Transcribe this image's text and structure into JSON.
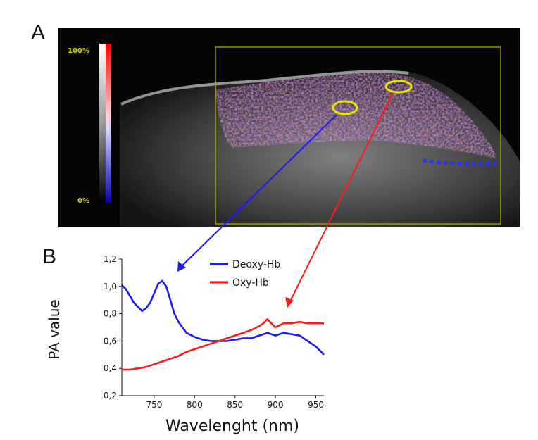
{
  "panels": {
    "a_label": "A",
    "b_label": "B"
  },
  "image_panel": {
    "colorbar_top_label": "100%",
    "colorbar_bottom_label": "0%",
    "colors": {
      "roi_outline": "#e6e600",
      "oxy_arrow": "#ff1a1a",
      "deoxy_arrow": "#1a1aff"
    }
  },
  "chart_data": {
    "type": "line",
    "title": "",
    "xlabel": "Wavelenght (nm)",
    "ylabel": "PA value",
    "xlim": [
      710,
      960
    ],
    "ylim": [
      0.2,
      1.2
    ],
    "xticks": [
      750,
      800,
      850,
      900,
      950
    ],
    "yticks": [
      0.2,
      0.4,
      0.6,
      0.8,
      1.0,
      1.2
    ],
    "ytick_labels": [
      "0,2",
      "0,4",
      "0,6",
      "0,8",
      "1,0",
      "1,2"
    ],
    "legend_position": "top-right",
    "series": [
      {
        "name": "Deoxy-Hb",
        "color": "#1a1aff",
        "x": [
          710,
          715,
          720,
          725,
          730,
          735,
          740,
          745,
          750,
          755,
          760,
          765,
          770,
          775,
          780,
          785,
          790,
          800,
          810,
          820,
          830,
          840,
          850,
          860,
          870,
          880,
          890,
          900,
          910,
          920,
          930,
          940,
          950,
          960
        ],
        "y": [
          1.01,
          0.98,
          0.93,
          0.88,
          0.85,
          0.82,
          0.84,
          0.88,
          0.95,
          1.02,
          1.04,
          1.0,
          0.9,
          0.8,
          0.74,
          0.7,
          0.66,
          0.63,
          0.61,
          0.6,
          0.6,
          0.6,
          0.61,
          0.62,
          0.62,
          0.64,
          0.66,
          0.64,
          0.66,
          0.65,
          0.64,
          0.6,
          0.56,
          0.5
        ]
      },
      {
        "name": "Oxy-Hb",
        "color": "#ff1a1a",
        "x": [
          710,
          720,
          730,
          740,
          750,
          760,
          770,
          780,
          790,
          800,
          810,
          820,
          830,
          840,
          850,
          860,
          870,
          880,
          885,
          890,
          895,
          900,
          910,
          920,
          930,
          940,
          950,
          960
        ],
        "y": [
          0.39,
          0.39,
          0.4,
          0.41,
          0.43,
          0.45,
          0.47,
          0.49,
          0.52,
          0.54,
          0.56,
          0.58,
          0.6,
          0.62,
          0.64,
          0.66,
          0.68,
          0.71,
          0.73,
          0.76,
          0.73,
          0.7,
          0.73,
          0.73,
          0.74,
          0.73,
          0.73,
          0.73
        ]
      }
    ]
  }
}
